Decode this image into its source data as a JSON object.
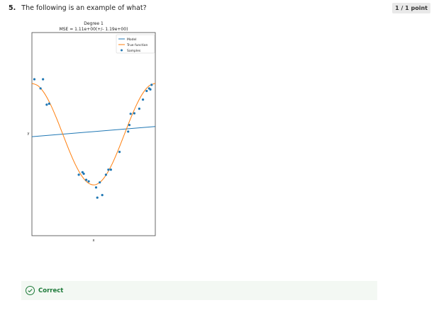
{
  "question": {
    "number": "5.",
    "text": "The following is an example of what?"
  },
  "points_badge": "1 / 1 point",
  "feedback": {
    "status": "Correct",
    "color": "#1e7b3a"
  },
  "chart_data": {
    "type": "scatter",
    "title": "Degree 1",
    "subtitle": "MSE = 1.11e+00(+/- 1.19e+00)",
    "xlabel": "x",
    "ylabel": "y",
    "xlim": [
      0,
      1
    ],
    "ylim": [
      -2,
      2
    ],
    "grid": false,
    "legend_placement": "top-right",
    "legend": [
      "Model",
      "True function",
      "Samples"
    ],
    "series": [
      {
        "name": "Model",
        "kind": "line",
        "color": "#1f77b4",
        "x": [
          0,
          1
        ],
        "y": [
          -0.05,
          0.15
        ]
      },
      {
        "name": "True function",
        "kind": "line",
        "color": "#ff7f0e",
        "x": [
          0.0,
          0.05,
          0.1,
          0.15,
          0.2,
          0.25,
          0.3,
          0.35,
          0.4,
          0.45,
          0.5,
          0.55,
          0.6,
          0.65,
          0.7,
          0.75,
          0.8,
          0.85,
          0.9,
          0.95,
          1.0
        ],
        "y": [
          1.0,
          0.951,
          0.809,
          0.588,
          0.309,
          0.0,
          -0.309,
          -0.588,
          -0.809,
          -0.951,
          -1.0,
          -0.951,
          -0.809,
          -0.588,
          -0.309,
          0.0,
          0.309,
          0.588,
          0.809,
          0.951,
          1.0
        ]
      },
      {
        "name": "Samples",
        "kind": "scatter",
        "color": "#1f77b4",
        "x": [
          0.02,
          0.07,
          0.09,
          0.12,
          0.14,
          0.38,
          0.41,
          0.42,
          0.44,
          0.46,
          0.52,
          0.53,
          0.55,
          0.57,
          0.6,
          0.62,
          0.64,
          0.71,
          0.78,
          0.79,
          0.8,
          0.83,
          0.87,
          0.9,
          0.93,
          0.95,
          0.96,
          0.97
        ],
        "y": [
          1.08,
          0.9,
          1.08,
          0.58,
          0.6,
          -0.8,
          -0.75,
          -0.78,
          -0.9,
          -0.93,
          -1.05,
          -1.25,
          -0.95,
          -1.2,
          -0.8,
          -0.7,
          -0.7,
          -0.35,
          0.05,
          0.18,
          0.4,
          0.41,
          0.5,
          0.68,
          0.85,
          0.9,
          0.88,
          0.97
        ]
      }
    ]
  }
}
